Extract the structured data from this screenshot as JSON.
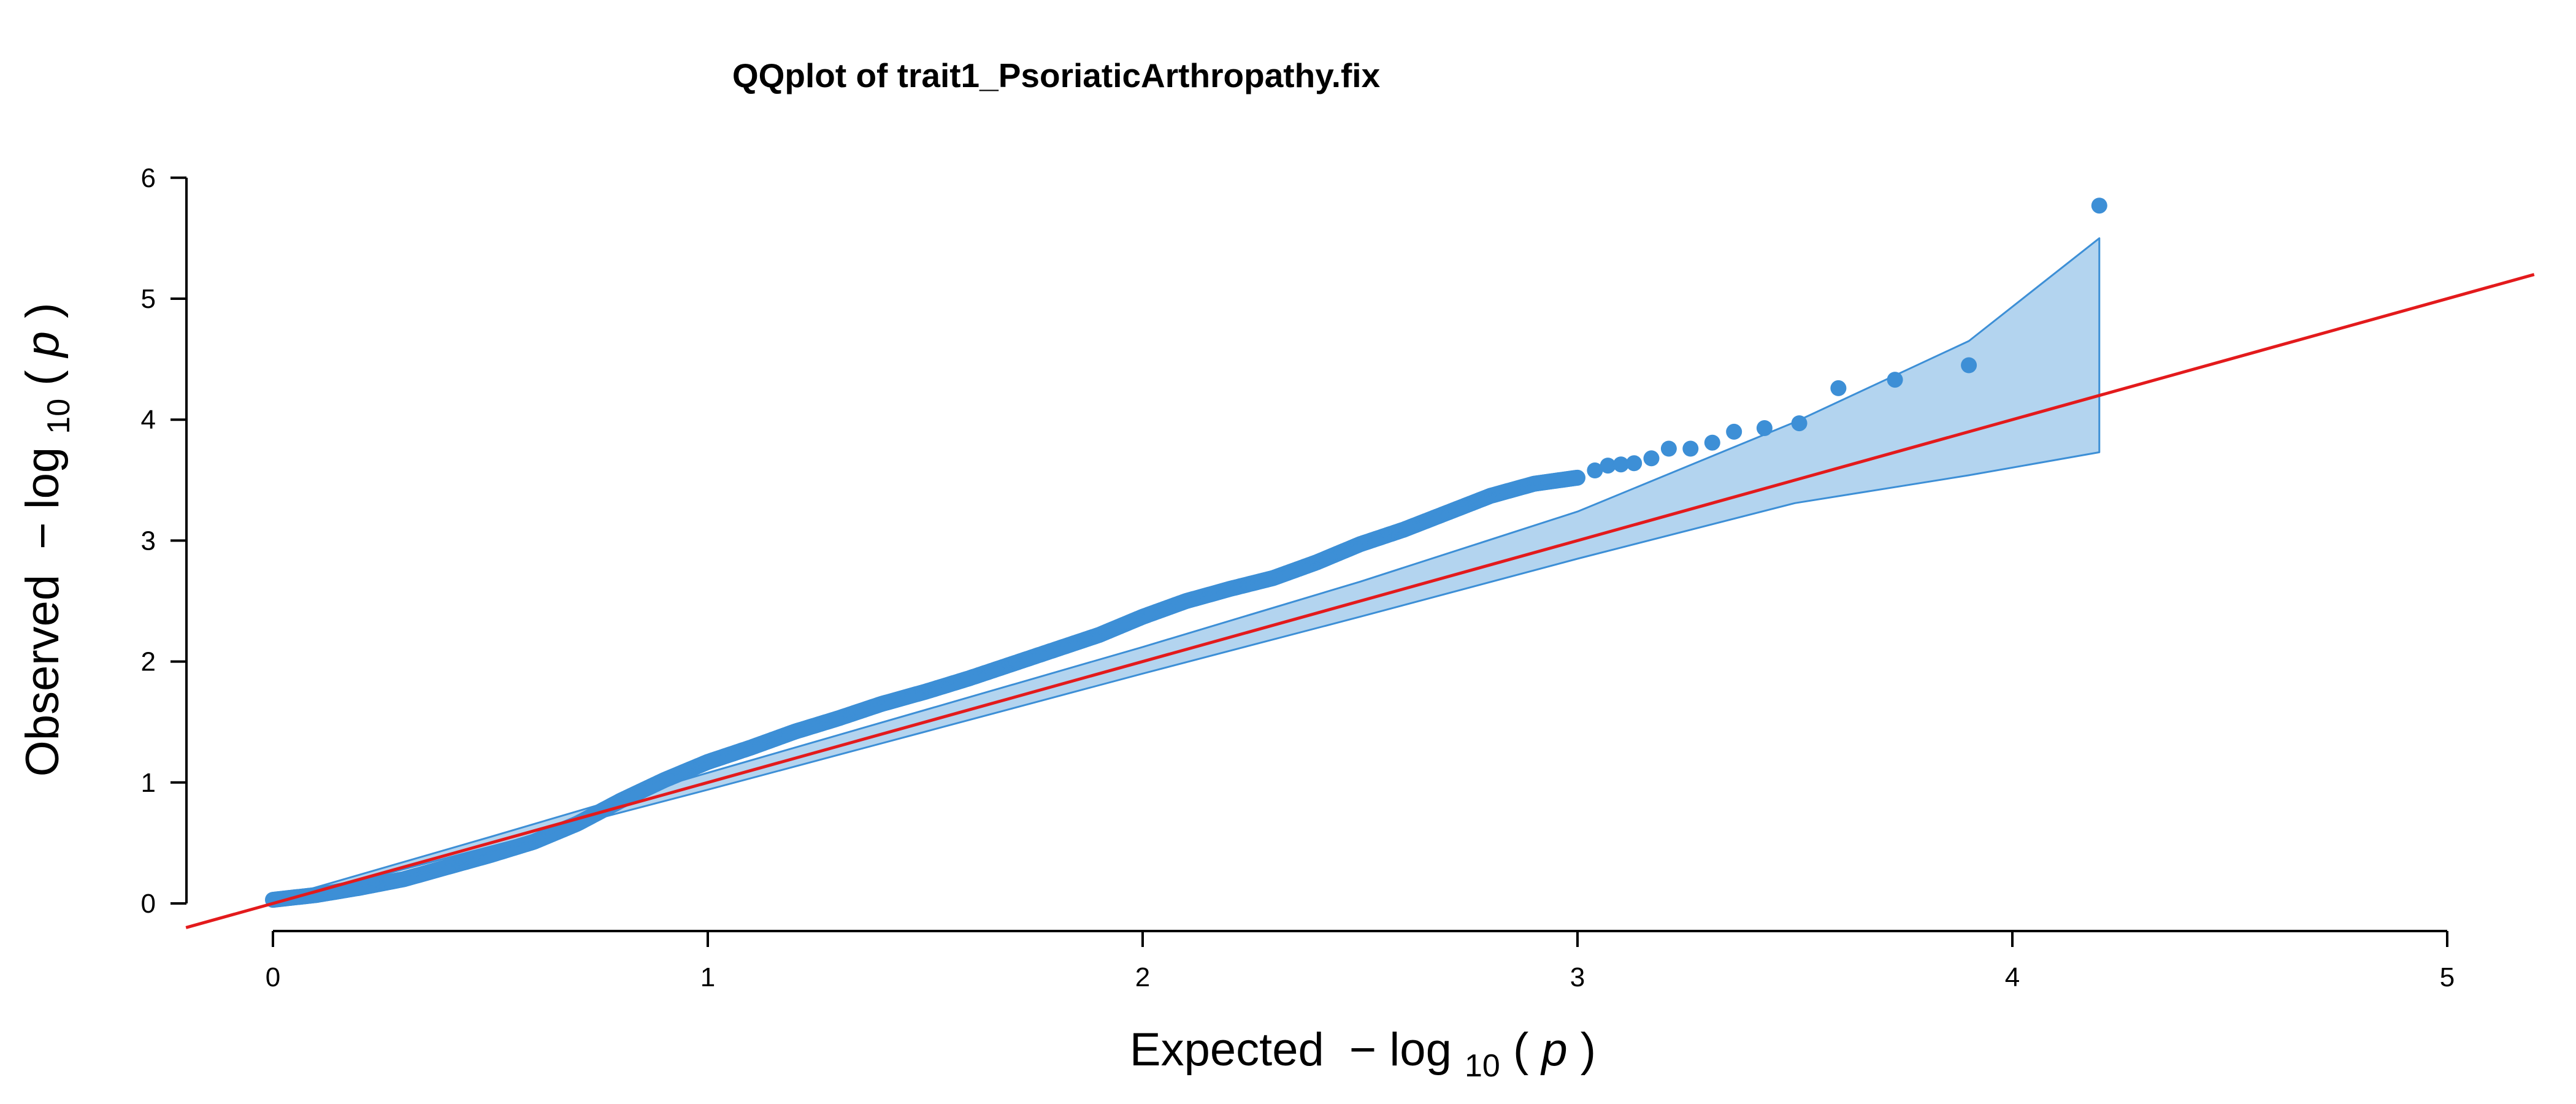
{
  "chart_data": {
    "type": "scatter",
    "title": "QQplot of trait1_PsoriaticArthropathy.fix",
    "xlabel": {
      "prefix": "Expected",
      "minus": "−",
      "log": "log",
      "base": "10",
      "open": "(",
      "var": "p",
      "close": ")"
    },
    "ylabel": {
      "prefix": "Observed",
      "minus": "−",
      "log": "log",
      "base": "10",
      "open": "(",
      "var": "p",
      "close": ")"
    },
    "xlim": [
      0,
      5
    ],
    "ylim": [
      0,
      6
    ],
    "xticks": [
      0,
      1,
      2,
      3,
      4,
      5
    ],
    "yticks": [
      0,
      1,
      2,
      3,
      4,
      5,
      6
    ],
    "grid": false,
    "colors": {
      "points": "#3d8fd6",
      "band_fill": "#b3d4ef",
      "band_edge": "#3d8fd6",
      "reference_line": "#e31a1c"
    },
    "reference_line": {
      "slope": 1,
      "intercept": 0
    },
    "confidence_band": {
      "x": [
        0.0,
        0.5,
        1.0,
        1.5,
        2.0,
        2.5,
        3.0,
        3.5,
        3.9,
        4.2
      ],
      "upper": [
        0.03,
        0.55,
        1.08,
        1.6,
        2.12,
        2.66,
        3.24,
        3.98,
        4.65,
        5.5
      ],
      "lower": [
        0.0,
        0.47,
        0.94,
        1.42,
        1.9,
        2.37,
        2.85,
        3.31,
        3.54,
        3.73
      ]
    },
    "series": [
      {
        "curve_points": [
          [
            0.0,
            0.03
          ],
          [
            0.1,
            0.07
          ],
          [
            0.2,
            0.13
          ],
          [
            0.3,
            0.2
          ],
          [
            0.4,
            0.3
          ],
          [
            0.5,
            0.4
          ],
          [
            0.6,
            0.51
          ],
          [
            0.7,
            0.66
          ],
          [
            0.8,
            0.85
          ],
          [
            0.9,
            1.02
          ],
          [
            1.0,
            1.17
          ],
          [
            1.1,
            1.29
          ],
          [
            1.2,
            1.42
          ],
          [
            1.3,
            1.53
          ],
          [
            1.4,
            1.65
          ],
          [
            1.5,
            1.75
          ],
          [
            1.6,
            1.86
          ],
          [
            1.7,
            1.98
          ],
          [
            1.8,
            2.1
          ],
          [
            1.9,
            2.22
          ],
          [
            2.0,
            2.37
          ],
          [
            2.1,
            2.5
          ],
          [
            2.2,
            2.6
          ],
          [
            2.3,
            2.69
          ],
          [
            2.4,
            2.82
          ],
          [
            2.5,
            2.97
          ],
          [
            2.6,
            3.09
          ],
          [
            2.7,
            3.23
          ],
          [
            2.8,
            3.37
          ],
          [
            2.9,
            3.47
          ],
          [
            3.0,
            3.52
          ]
        ],
        "tail_points": [
          [
            3.04,
            3.58
          ],
          [
            3.07,
            3.62
          ],
          [
            3.1,
            3.63
          ],
          [
            3.13,
            3.64
          ],
          [
            3.17,
            3.68
          ],
          [
            3.21,
            3.76
          ],
          [
            3.26,
            3.76
          ],
          [
            3.31,
            3.81
          ],
          [
            3.36,
            3.9
          ],
          [
            3.43,
            3.93
          ],
          [
            3.51,
            3.97
          ],
          [
            3.6,
            4.26
          ],
          [
            3.73,
            4.33
          ],
          [
            3.9,
            4.45
          ],
          [
            4.2,
            5.77
          ]
        ]
      }
    ]
  }
}
